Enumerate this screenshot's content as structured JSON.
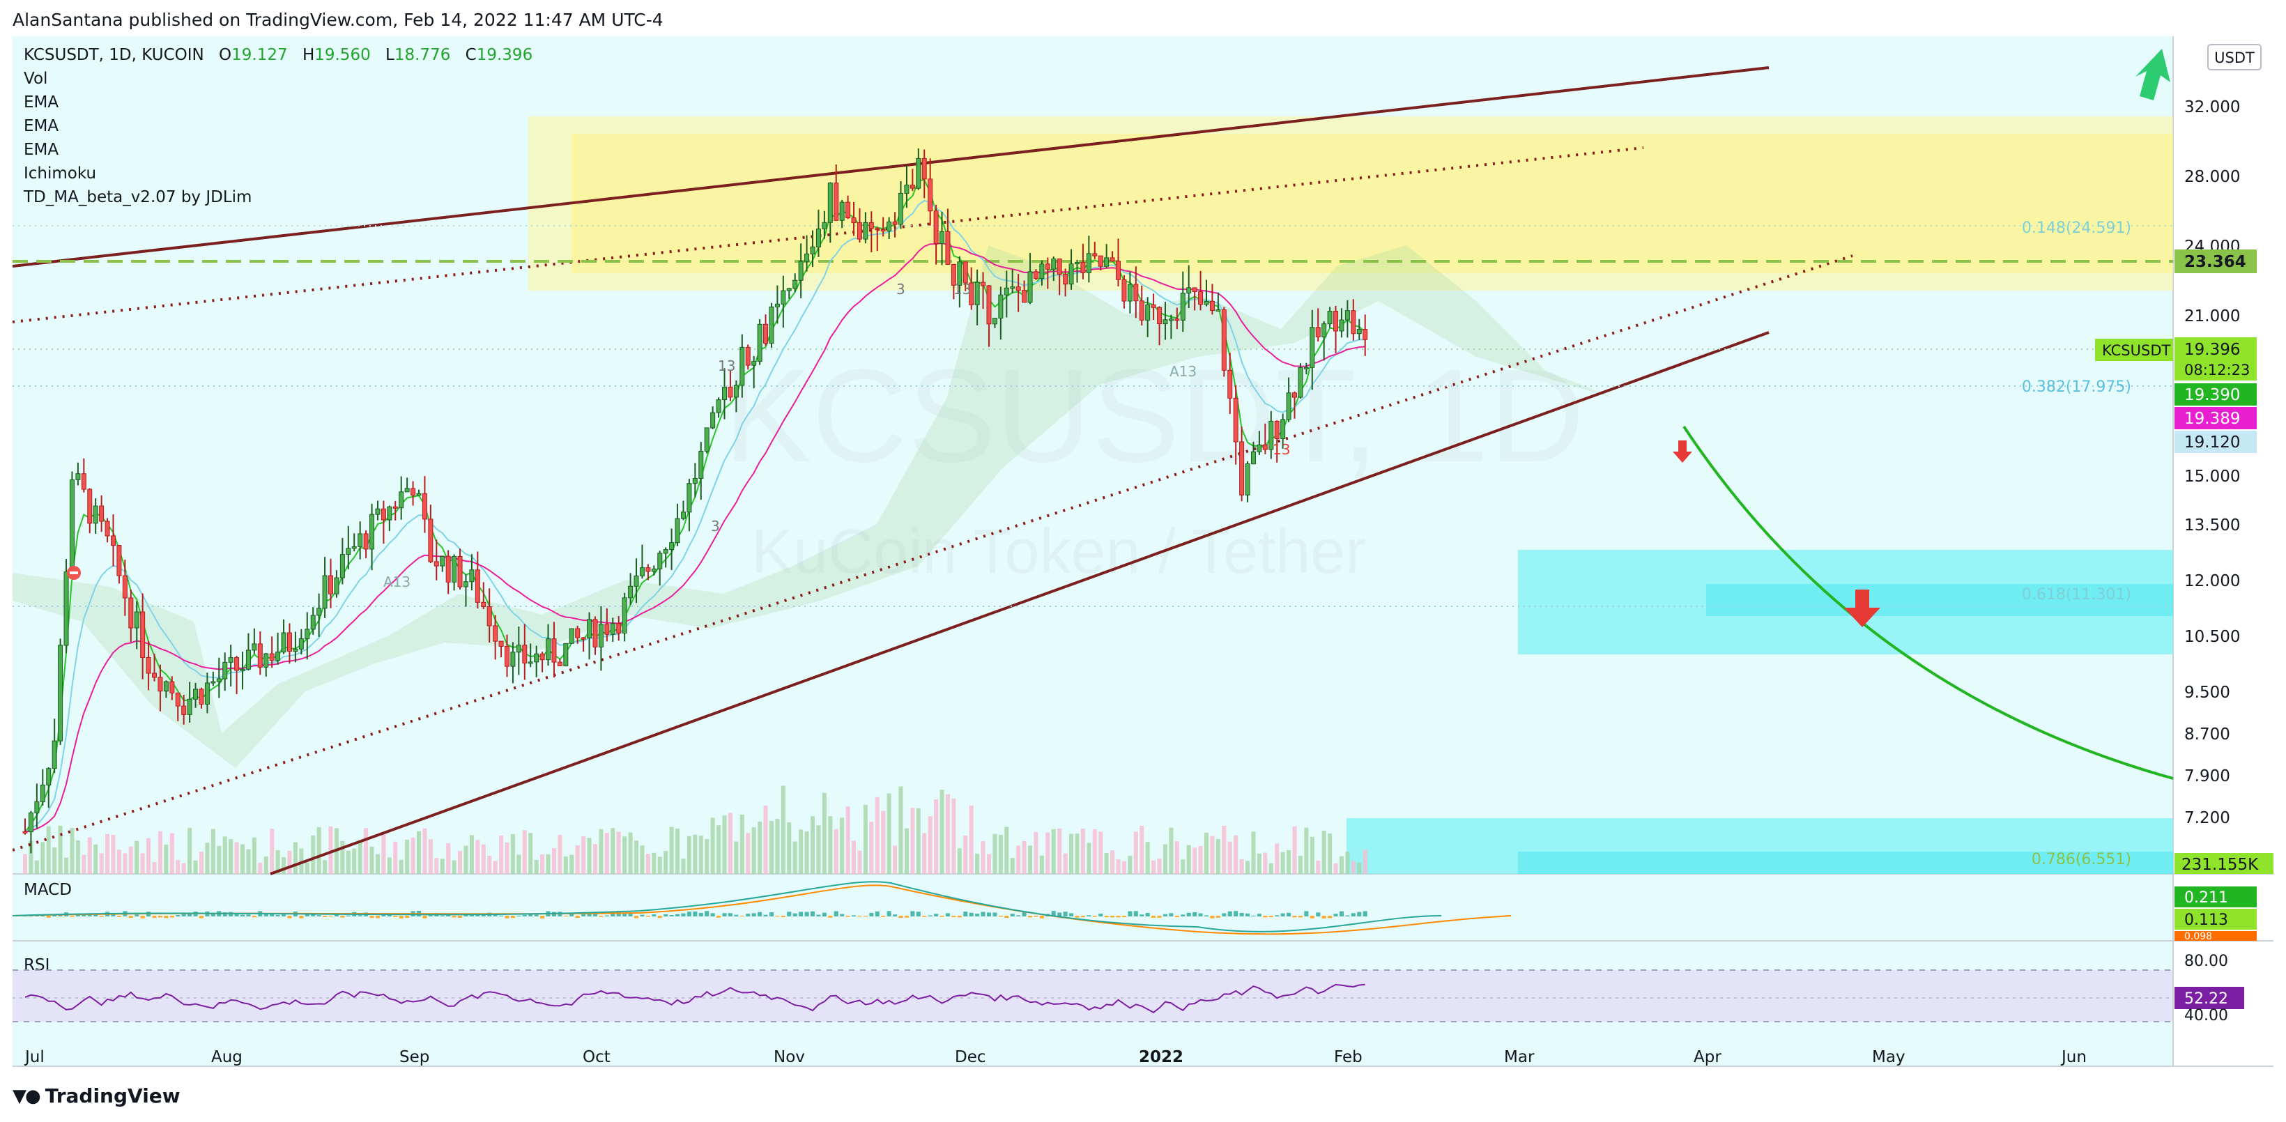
{
  "header": {
    "text": "AlanSantana published on TradingView.com, Feb 14, 2022 11:47 AM UTC-4"
  },
  "footer": {
    "brand": "TradingView",
    "logo": "tradingview-logo"
  },
  "legend": {
    "symbol": "KCSUSDT, 1D, KUCOIN",
    "o_label": "O",
    "o": "19.127",
    "h_label": "H",
    "h": "19.560",
    "l_label": "L",
    "l": "18.776",
    "c_label": "C",
    "c": "19.396",
    "indicators": [
      "Vol",
      "EMA",
      "EMA",
      "EMA",
      "Ichimoku",
      "TD_MA_beta_v2.07 by JDLim"
    ]
  },
  "watermark": {
    "symbol": "KCSUSDT, 1D",
    "name": "KuCoin Token / Tether"
  },
  "currency_button": "USDT",
  "price_scale": [
    "32.000",
    "28.000",
    "24.000",
    "21.000",
    "15.000",
    "13.500",
    "12.000",
    "10.500",
    "9.500",
    "8.700",
    "7.900",
    "7.200"
  ],
  "price_badges": {
    "level_23": "23.364",
    "symbol_tag": "KCSUSDT",
    "last": "19.396",
    "countdown": "08:12:23",
    "ema1": "19.390",
    "ema2": "19.389",
    "ema3": "19.120",
    "volume": "231.155K"
  },
  "fib_labels": [
    "0.148(24.591)",
    "0.382(17.975)",
    "0.618(11.301)",
    "0.786(6.551)"
  ],
  "time_axis": [
    "Jul",
    "Aug",
    "Sep",
    "Oct",
    "Nov",
    "Dec",
    "2022",
    "Feb",
    "Mar",
    "Apr",
    "May",
    "Jun"
  ],
  "macd": {
    "label": "MACD",
    "v1": "0.211",
    "v2": "0.113",
    "v3": "0.098"
  },
  "rsi": {
    "label": "RSI",
    "scale_top": "80.00",
    "scale_bottom": "40.00",
    "value": "52.22"
  },
  "td_labels": [
    "A13",
    "A13",
    "3",
    "13",
    "13",
    "3",
    "13"
  ],
  "colors": {
    "up": "#26a69a",
    "down": "#ef5350",
    "wick_up": "#1b5e20",
    "trendline": "#7b1f1f",
    "dashed_level": "#8bc34a",
    "projection": "#22b522",
    "yellow_zone": "#fff59d",
    "cyan_zone": "#7ff2f7",
    "ema_cyan": "#7fd3e6",
    "ema_pink": "#e91e9b",
    "ema_green": "#26c626",
    "badge_green": "#4caf50",
    "badge_pink": "#e040fb",
    "badge_blue": "#bfe3ef",
    "rsi_line": "#7b1fa2"
  },
  "chart_data": {
    "type": "candlestick",
    "symbol": "KCSUSDT",
    "timeframe": "1D",
    "y_scale": "log",
    "ylim": [
      6.5,
      35
    ],
    "x_ticks": [
      "Jul",
      "Aug",
      "Sep",
      "Oct",
      "Nov",
      "Dec",
      "2022",
      "Feb",
      "Mar",
      "Apr",
      "May",
      "Jun"
    ],
    "ohlc_last": {
      "open": 19.127,
      "high": 19.56,
      "low": 18.776,
      "close": 19.396
    },
    "close_path": [
      {
        "date": "2021-07-01",
        "close": 7.0
      },
      {
        "date": "2021-07-06",
        "close": 8.5
      },
      {
        "date": "2021-07-09",
        "close": 14.8
      },
      {
        "date": "2021-07-15",
        "close": 12.8
      },
      {
        "date": "2021-07-22",
        "close": 10.0
      },
      {
        "date": "2021-07-28",
        "close": 9.2
      },
      {
        "date": "2021-08-05",
        "close": 9.8
      },
      {
        "date": "2021-08-15",
        "close": 10.4
      },
      {
        "date": "2021-08-25",
        "close": 12.5
      },
      {
        "date": "2021-09-05",
        "close": 14.6
      },
      {
        "date": "2021-09-08",
        "close": 12.5
      },
      {
        "date": "2021-09-15",
        "close": 11.8
      },
      {
        "date": "2021-09-22",
        "close": 10.0
      },
      {
        "date": "2021-09-30",
        "close": 10.2
      },
      {
        "date": "2021-10-10",
        "close": 11.0
      },
      {
        "date": "2021-10-20",
        "close": 13.5
      },
      {
        "date": "2021-10-30",
        "close": 18.5
      },
      {
        "date": "2021-11-08",
        "close": 21.5
      },
      {
        "date": "2021-11-15",
        "close": 26.5
      },
      {
        "date": "2021-11-22",
        "close": 24.0
      },
      {
        "date": "2021-11-30",
        "close": 28.0
      },
      {
        "date": "2021-12-05",
        "close": 23.0
      },
      {
        "date": "2021-12-12",
        "close": 21.0
      },
      {
        "date": "2021-12-22",
        "close": 22.5
      },
      {
        "date": "2022-01-01",
        "close": 23.0
      },
      {
        "date": "2022-01-08",
        "close": 20.5
      },
      {
        "date": "2022-01-15",
        "close": 21.5
      },
      {
        "date": "2022-01-20",
        "close": 20.5
      },
      {
        "date": "2022-01-24",
        "close": 14.5
      },
      {
        "date": "2022-01-30",
        "close": 16.5
      },
      {
        "date": "2022-02-05",
        "close": 19.5
      },
      {
        "date": "2022-02-10",
        "close": 21.0
      },
      {
        "date": "2022-02-14",
        "close": 19.4
      }
    ],
    "projection": [
      {
        "date": "2022-03-25",
        "value": 17.0
      },
      {
        "date": "2022-04-25",
        "value": 11.3
      },
      {
        "date": "2022-06-30",
        "value": 7.9
      }
    ],
    "horizontal_levels": [
      23.364
    ],
    "fib_levels": [
      {
        "ratio": 0.148,
        "price": 24.591
      },
      {
        "ratio": 0.382,
        "price": 17.975
      },
      {
        "ratio": 0.618,
        "price": 11.301
      },
      {
        "ratio": 0.786,
        "price": 6.551
      }
    ],
    "macd": {
      "values": [
        0.211,
        0.113,
        0.098
      ]
    },
    "rsi": {
      "value": 52.22,
      "upper": 80,
      "lower": 40
    }
  }
}
